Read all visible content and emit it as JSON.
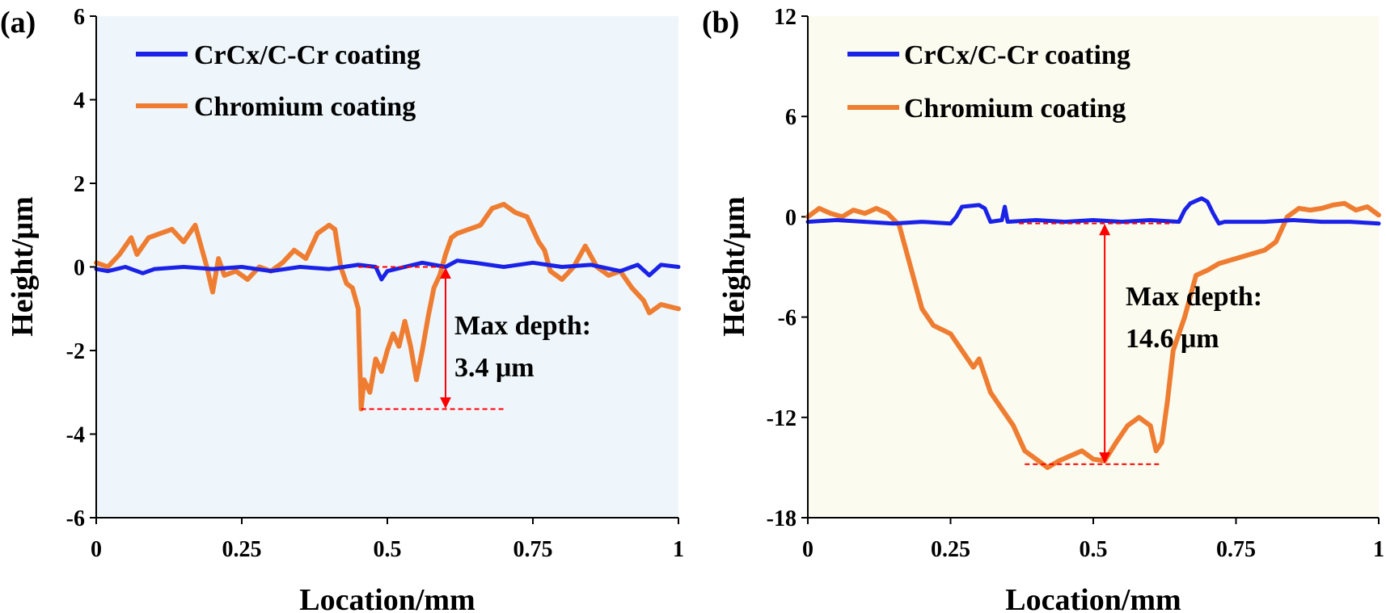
{
  "chart_data": [
    {
      "panel_label": "(a)",
      "type": "line",
      "xlabel": "Location/mm",
      "ylabel": "Height/μm",
      "xlim": [
        0,
        1
      ],
      "ylim": [
        -6,
        6
      ],
      "xticks": [
        0,
        0.25,
        0.5,
        0.75,
        1
      ],
      "xtick_labels": [
        "0",
        "0.25",
        "0.5",
        "0.75",
        "1"
      ],
      "yticks": [
        6,
        4,
        2,
        0,
        -2,
        -4,
        -6
      ],
      "ytick_labels": [
        "6",
        "4",
        "2",
        "0",
        "-2",
        "-4",
        "-6"
      ],
      "background": "#eef6fb",
      "legend_position": "top-left",
      "series": [
        {
          "name": "CrCx/C-Cr coating",
          "color": "#1a22e8",
          "x": [
            0,
            0.02,
            0.05,
            0.08,
            0.1,
            0.15,
            0.2,
            0.25,
            0.3,
            0.35,
            0.4,
            0.45,
            0.48,
            0.49,
            0.5,
            0.53,
            0.56,
            0.6,
            0.62,
            0.65,
            0.7,
            0.75,
            0.8,
            0.85,
            0.9,
            0.93,
            0.95,
            0.97,
            1.0
          ],
          "y": [
            -0.05,
            -0.1,
            0.0,
            -0.15,
            -0.05,
            0.0,
            -0.05,
            0.0,
            -0.1,
            0.0,
            -0.05,
            0.05,
            0.0,
            -0.3,
            -0.1,
            0.0,
            0.1,
            0.0,
            0.15,
            0.1,
            0.0,
            0.1,
            0.0,
            0.05,
            -0.1,
            0.05,
            -0.2,
            0.05,
            0.0
          ]
        },
        {
          "name": "Chromium coating",
          "color": "#ee7d32",
          "x": [
            0,
            0.02,
            0.04,
            0.06,
            0.07,
            0.09,
            0.11,
            0.13,
            0.15,
            0.17,
            0.19,
            0.2,
            0.21,
            0.22,
            0.24,
            0.26,
            0.28,
            0.3,
            0.32,
            0.34,
            0.36,
            0.38,
            0.4,
            0.41,
            0.42,
            0.43,
            0.44,
            0.45,
            0.455,
            0.46,
            0.47,
            0.48,
            0.49,
            0.5,
            0.51,
            0.52,
            0.53,
            0.54,
            0.55,
            0.56,
            0.57,
            0.58,
            0.59,
            0.6,
            0.61,
            0.62,
            0.64,
            0.66,
            0.68,
            0.7,
            0.72,
            0.74,
            0.76,
            0.77,
            0.78,
            0.8,
            0.82,
            0.84,
            0.86,
            0.88,
            0.9,
            0.92,
            0.94,
            0.95,
            0.97,
            1.0
          ],
          "y": [
            0.1,
            0.0,
            0.3,
            0.7,
            0.3,
            0.7,
            0.8,
            0.9,
            0.6,
            1.0,
            0.0,
            -0.6,
            0.2,
            -0.2,
            -0.1,
            -0.3,
            0.0,
            -0.1,
            0.1,
            0.4,
            0.2,
            0.8,
            1.0,
            0.9,
            0.0,
            -0.4,
            -0.5,
            -1.0,
            -3.4,
            -2.7,
            -3.0,
            -2.2,
            -2.5,
            -2.0,
            -1.6,
            -1.9,
            -1.3,
            -1.9,
            -2.7,
            -2.0,
            -1.2,
            -0.5,
            -0.2,
            0.3,
            0.7,
            0.8,
            0.9,
            1.0,
            1.4,
            1.5,
            1.3,
            1.2,
            0.6,
            0.4,
            -0.1,
            -0.3,
            0.0,
            0.5,
            0.0,
            -0.2,
            -0.1,
            -0.5,
            -0.8,
            -1.1,
            -0.9,
            -1.0
          ]
        }
      ],
      "annotation": {
        "text_line1": "Max depth:",
        "text_line2": "3.4 μm",
        "arrow_x": 0.6,
        "arrow_y_top": 0.0,
        "arrow_y_bottom": -3.4,
        "top_line_x": [
          0.45,
          0.6
        ],
        "bottom_line_x": [
          0.455,
          0.7
        ],
        "color": "#ff0000"
      }
    },
    {
      "panel_label": "(b)",
      "type": "line",
      "xlabel": "Location/mm",
      "ylabel": "Height/μm",
      "xlim": [
        0,
        1
      ],
      "ylim": [
        -18,
        12
      ],
      "xticks": [
        0,
        0.25,
        0.5,
        0.75,
        1
      ],
      "xtick_labels": [
        "0",
        "0.25",
        "0.5",
        "0.75",
        "1"
      ],
      "yticks": [
        12,
        6,
        0,
        -6,
        -12,
        -18
      ],
      "ytick_labels": [
        "12",
        "6",
        "0",
        "-6",
        "-12",
        "-18"
      ],
      "background": "#fcfbef",
      "legend_position": "top-left",
      "series": [
        {
          "name": "CrCx/C-Cr coating",
          "color": "#1a22e8",
          "x": [
            0,
            0.05,
            0.1,
            0.15,
            0.2,
            0.25,
            0.26,
            0.27,
            0.3,
            0.31,
            0.32,
            0.34,
            0.345,
            0.35,
            0.4,
            0.45,
            0.5,
            0.55,
            0.6,
            0.65,
            0.66,
            0.67,
            0.69,
            0.7,
            0.71,
            0.72,
            0.73,
            0.8,
            0.85,
            0.9,
            0.95,
            1.0
          ],
          "y": [
            -0.3,
            -0.2,
            -0.3,
            -0.4,
            -0.3,
            -0.4,
            0.0,
            0.6,
            0.7,
            0.5,
            -0.3,
            -0.2,
            0.6,
            -0.3,
            -0.2,
            -0.3,
            -0.2,
            -0.3,
            -0.2,
            -0.3,
            0.4,
            0.8,
            1.1,
            0.9,
            0.2,
            -0.4,
            -0.3,
            -0.3,
            -0.2,
            -0.3,
            -0.3,
            -0.4
          ]
        },
        {
          "name": "Chromium coating",
          "color": "#ee7d32",
          "x": [
            0,
            0.02,
            0.04,
            0.06,
            0.08,
            0.1,
            0.12,
            0.14,
            0.16,
            0.18,
            0.2,
            0.22,
            0.25,
            0.27,
            0.29,
            0.3,
            0.32,
            0.34,
            0.36,
            0.38,
            0.4,
            0.42,
            0.44,
            0.46,
            0.48,
            0.5,
            0.52,
            0.54,
            0.56,
            0.58,
            0.6,
            0.61,
            0.62,
            0.63,
            0.64,
            0.66,
            0.68,
            0.7,
            0.72,
            0.75,
            0.78,
            0.8,
            0.82,
            0.84,
            0.86,
            0.88,
            0.9,
            0.92,
            0.94,
            0.96,
            0.98,
            1.0
          ],
          "y": [
            0.0,
            0.5,
            0.2,
            0.0,
            0.4,
            0.2,
            0.5,
            0.2,
            -0.5,
            -3.0,
            -5.5,
            -6.5,
            -7.0,
            -8.0,
            -9.0,
            -8.5,
            -10.5,
            -11.5,
            -12.5,
            -14.0,
            -14.5,
            -15.0,
            -14.6,
            -14.3,
            -14.0,
            -14.5,
            -14.6,
            -13.5,
            -12.5,
            -12.0,
            -12.5,
            -14.0,
            -13.5,
            -11.0,
            -8.0,
            -6.0,
            -3.5,
            -3.2,
            -2.8,
            -2.5,
            -2.2,
            -2.0,
            -1.5,
            0.0,
            0.5,
            0.4,
            0.5,
            0.7,
            0.8,
            0.4,
            0.6,
            0.1
          ]
        }
      ],
      "annotation": {
        "text_line1": "Max depth:",
        "text_line2": "14.6 μm",
        "arrow_x": 0.52,
        "arrow_y_top": -0.4,
        "arrow_y_bottom": -14.8,
        "top_line_x": [
          0.37,
          0.64
        ],
        "bottom_line_x": [
          0.38,
          0.62
        ],
        "color": "#ff0000"
      }
    }
  ]
}
